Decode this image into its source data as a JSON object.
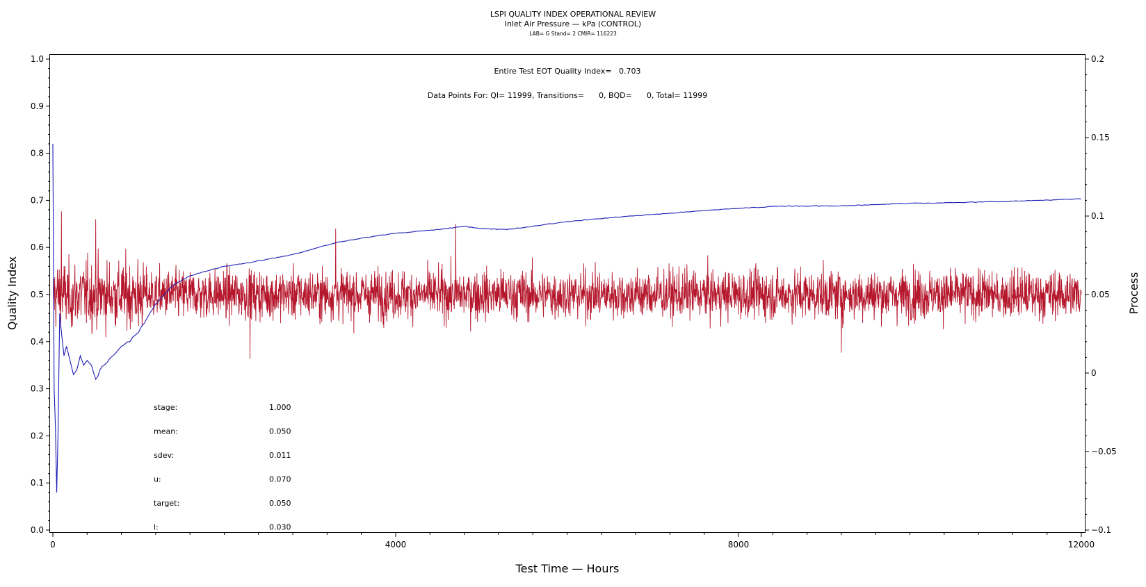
{
  "chart_data": {
    "type": "line",
    "title": "LSPI QUALITY INDEX OPERATIONAL REVIEW",
    "subtitle": "Inlet Air Pressure — kPa (CONTROL)",
    "caption": "LAB= G Stand= 2 CMIR= 116223",
    "xlabel": "Test Time — Hours",
    "ylabel_left": "Quality Index",
    "ylabel_right": "Process",
    "xlim": [
      0,
      12000
    ],
    "ylim_left": [
      0,
      1
    ],
    "ylim_right": [
      -0.1,
      0.2
    ],
    "x_ticks": [
      "0",
      "4000",
      "8000",
      "12000"
    ],
    "y_left_ticks": [
      "0.0",
      "0.1",
      "0.2",
      "0.3",
      "0.4",
      "0.5",
      "0.6",
      "0.7",
      "0.8",
      "0.9",
      "1.0"
    ],
    "y_right_ticks": [
      "−0.1",
      "−0.05",
      "0",
      "0.05",
      "0.1",
      "0.15",
      "0.2"
    ],
    "annotations": {
      "eot": "Entire Test EOT Quality Index=   0.703",
      "points": "Data Points For: QI= 11999, Transitions=      0, BQD=      0, Total= 11999"
    },
    "stats": [
      {
        "label": "stage:",
        "value": "1.000"
      },
      {
        "label": "mean:",
        "value": "0.050"
      },
      {
        "label": "sdev:",
        "value": "0.011"
      },
      {
        "label": "u:",
        "value": "0.070"
      },
      {
        "label": "target:",
        "value": "0.050"
      },
      {
        "label": "l:",
        "value": "0.030"
      }
    ],
    "series": [
      {
        "axis": "left",
        "color": "#1c1cb4",
        "x": [
          0,
          15,
          30,
          45,
          60,
          80,
          100,
          130,
          160,
          200,
          240,
          280,
          320,
          360,
          400,
          450,
          500,
          550,
          600,
          700,
          800,
          900,
          1000,
          1100,
          1200,
          1400,
          1600,
          1800,
          2000,
          2200,
          2500,
          2800,
          3000,
          3300,
          3600,
          4000,
          4300,
          4600,
          4800,
          5000,
          5300,
          5600,
          6000,
          6500,
          7000,
          7500,
          8000,
          8500,
          9000,
          9500,
          10000,
          10500,
          11000,
          11500,
          12000
        ],
        "values": [
          0.82,
          0.3,
          0.22,
          0.08,
          0.2,
          0.46,
          0.42,
          0.37,
          0.39,
          0.36,
          0.33,
          0.34,
          0.37,
          0.35,
          0.36,
          0.35,
          0.32,
          0.34,
          0.35,
          0.37,
          0.39,
          0.4,
          0.42,
          0.45,
          0.48,
          0.52,
          0.54,
          0.55,
          0.56,
          0.565,
          0.575,
          0.585,
          0.595,
          0.61,
          0.62,
          0.63,
          0.635,
          0.64,
          0.645,
          0.64,
          0.638,
          0.645,
          0.655,
          0.663,
          0.67,
          0.677,
          0.683,
          0.688,
          0.688,
          0.69,
          0.694,
          0.695,
          0.697,
          0.7,
          0.703
        ]
      },
      {
        "axis": "right",
        "color": "#b5162b",
        "mean": 0.05,
        "sdev": 0.011,
        "x": [
          0,
          100,
          200,
          500,
          1000,
          2000,
          2300,
          3000,
          3300,
          4000,
          4700,
          5000,
          6000,
          7000,
          8000,
          9000,
          9200,
          10000,
          11000,
          12000
        ],
        "values": [
          0.06,
          0.103,
          0.05,
          0.098,
          0.03,
          0.05,
          0.009,
          0.05,
          0.092,
          0.05,
          0.095,
          0.05,
          0.05,
          0.05,
          0.05,
          0.05,
          0.013,
          0.05,
          0.05,
          0.05
        ]
      }
    ]
  }
}
